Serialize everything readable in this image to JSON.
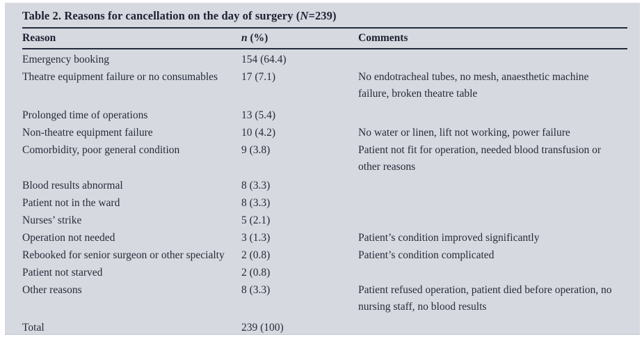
{
  "colors": {
    "panel_background": "#d6d9e0",
    "rule_color": "#232a3c",
    "text_color": "#262b38",
    "page_background": "#ffffff"
  },
  "table": {
    "title_lead": "Table 2. Reasons for cancellation on the day of surgery (",
    "title_nvar": "N",
    "title_tail": "=239)",
    "headers": {
      "reason": "Reason",
      "n_italic": "n",
      "n_rest": " (%)",
      "comments": "Comments"
    },
    "rows": [
      {
        "reason": "Emergency booking",
        "n": "154 (64.4)",
        "comments": ""
      },
      {
        "reason": "Theatre equipment failure or no consumables",
        "n": "17 (7.1)",
        "comments": "No endotracheal tubes, no mesh, anaesthetic machine failure, broken theatre table"
      },
      {
        "reason": "Prolonged time of operations",
        "n": "13 (5.4)",
        "comments": ""
      },
      {
        "reason": "Non-theatre equipment failure",
        "n": "10 (4.2)",
        "comments": "No water or linen, lift not working, power failure"
      },
      {
        "reason": "Comorbidity, poor general condition",
        "n": "9 (3.8)",
        "comments": "Patient not fit for operation, needed blood transfusion or other reasons"
      },
      {
        "reason": "Blood results abnormal",
        "n": "8 (3.3)",
        "comments": ""
      },
      {
        "reason": "Patient not in the ward",
        "n": "8 (3.3)",
        "comments": ""
      },
      {
        "reason": "Nurses’ strike",
        "n": "5 (2.1)",
        "comments": ""
      },
      {
        "reason": "Operation not needed",
        "n": "3 (1.3)",
        "comments": "Patient’s condition improved significantly"
      },
      {
        "reason": "Rebooked for senior surgeon or other specialty",
        "n": "2 (0.8)",
        "comments": "Patient’s condition complicated"
      },
      {
        "reason": "Patient not starved",
        "n": "2 (0.8)",
        "comments": ""
      },
      {
        "reason": "Other reasons",
        "n": "8 (3.3)",
        "comments": "Patient refused operation, patient died before operation, no nursing staff, no blood results"
      },
      {
        "reason": "Total",
        "n": "239 (100)",
        "comments": ""
      }
    ]
  }
}
